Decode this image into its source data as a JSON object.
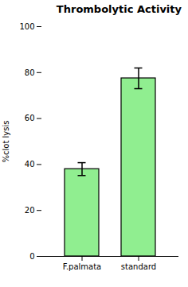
{
  "chart_data": {
    "type": "bar",
    "title": "Thrombolytic Activity",
    "categories": [
      "F.palmata",
      "standard"
    ],
    "values": [
      38.0,
      77.5
    ],
    "errors": [
      2.8,
      4.5
    ],
    "color": "#90EE90",
    "ylabel": "%clot lysis",
    "ylim": [
      0,
      100
    ],
    "yticks": [
      0,
      20,
      40,
      60,
      80,
      100
    ],
    "grid": false
  }
}
